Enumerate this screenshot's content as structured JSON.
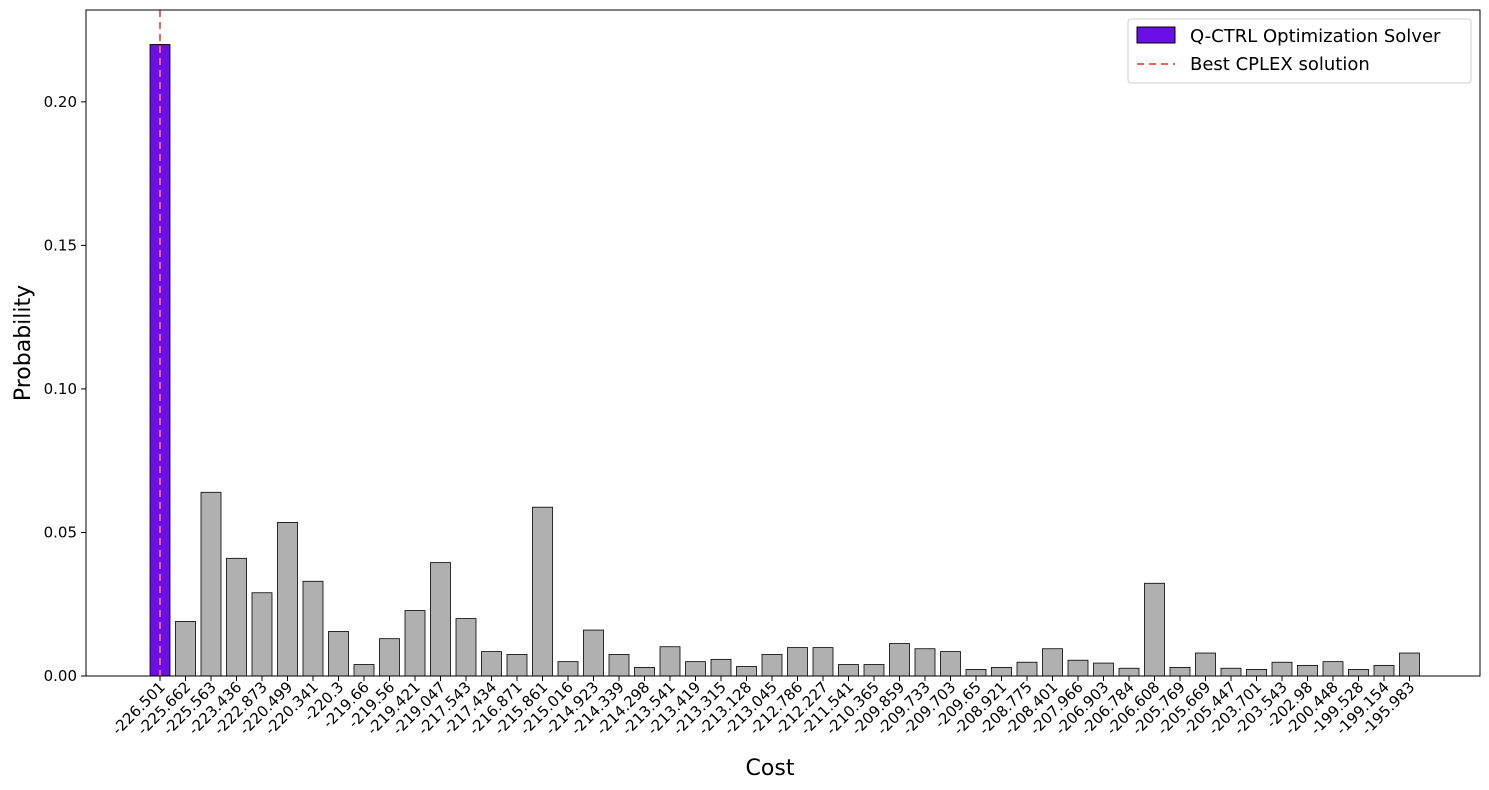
{
  "chart_data": {
    "type": "bar",
    "title": "",
    "xlabel": "Cost",
    "ylabel": "Probability",
    "ylim": [
      0,
      0.232
    ],
    "yticks": [
      "0.00",
      "0.05",
      "0.10",
      "0.15",
      "0.20"
    ],
    "ytick_values": [
      0,
      0.05,
      0.1,
      0.15,
      0.2
    ],
    "grid": false,
    "legend_position": "top-right",
    "categories": [
      "-226.501",
      "-225.662",
      "-225.563",
      "-223.436",
      "-222.873",
      "-220.499",
      "-220.341",
      "-220.3",
      "-219.66",
      "-219.56",
      "-219.421",
      "-219.047",
      "-217.543",
      "-217.434",
      "-216.871",
      "-215.861",
      "-215.016",
      "-214.923",
      "-214.339",
      "-214.298",
      "-213.541",
      "-213.419",
      "-213.315",
      "-213.128",
      "-213.045",
      "-212.786",
      "-212.227",
      "-211.541",
      "-210.365",
      "-209.859",
      "-209.733",
      "-209.703",
      "-209.65",
      "-208.921",
      "-208.775",
      "-208.401",
      "-207.966",
      "-206.903",
      "-206.784",
      "-206.608",
      "-205.769",
      "-205.669",
      "-205.447",
      "-203.701",
      "-203.543",
      "-202.98",
      "-200.448",
      "-199.528",
      "-199.154",
      "-195.983"
    ],
    "values": [
      0.22,
      0.019,
      0.064,
      0.041,
      0.029,
      0.0535,
      0.033,
      0.0155,
      0.004,
      0.013,
      0.0228,
      0.0395,
      0.02,
      0.0085,
      0.0075,
      0.0588,
      0.005,
      0.016,
      0.0075,
      0.003,
      0.0102,
      0.005,
      0.0058,
      0.0033,
      0.0075,
      0.0099,
      0.0099,
      0.004,
      0.004,
      0.0113,
      0.0095,
      0.0085,
      0.0023,
      0.003,
      0.0048,
      0.0095,
      0.0055,
      0.0045,
      0.0027,
      0.0323,
      0.003,
      0.008,
      0.0027,
      0.0023,
      0.0048,
      0.0037,
      0.005,
      0.0023,
      0.0037,
      0.008
    ],
    "highlight_index": 0,
    "series": [
      {
        "name": "Q-CTRL Optimization Solver",
        "color": "#6a0fe8"
      }
    ],
    "bar_color": "#b0b0b0",
    "reference_line": {
      "name": "Best CPLEX solution",
      "category": "-226.501",
      "color": "#e8665a"
    }
  }
}
